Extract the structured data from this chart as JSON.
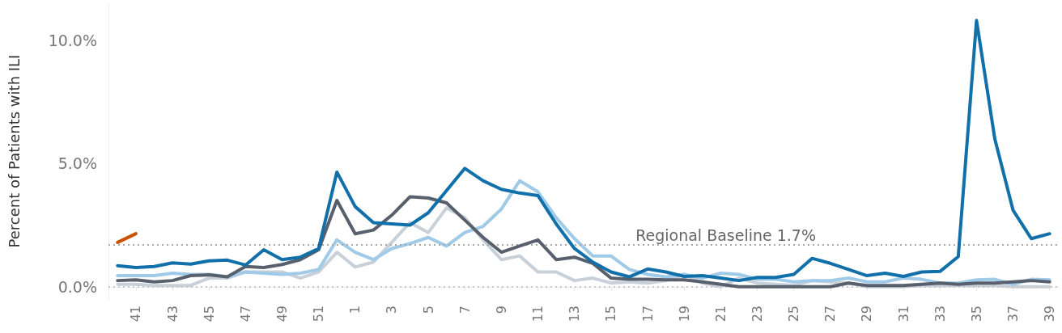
{
  "chart_data": {
    "type": "line",
    "ylabel": "Percent of Patients with ILI",
    "categories": [
      null,
      "41",
      null,
      "43",
      null,
      "45",
      null,
      "47",
      null,
      "49",
      null,
      "51",
      null,
      "1",
      null,
      "3",
      null,
      "5",
      null,
      "7",
      null,
      "9",
      null,
      "11",
      null,
      "13",
      null,
      "15",
      null,
      "17",
      null,
      "19",
      null,
      "21",
      null,
      "23",
      null,
      "25",
      null,
      "27",
      null,
      "29",
      null,
      "31",
      null,
      "33",
      null,
      "35",
      null,
      "37",
      null,
      "39"
    ],
    "series": [
      {
        "color": "#c8d0d9",
        "values": [
          0.1,
          0.1,
          0.05,
          0.05,
          0.05,
          0.35,
          0.35,
          0.6,
          0.6,
          0.6,
          0.35,
          0.6,
          1.4,
          0.8,
          1.0,
          1.8,
          2.6,
          2.2,
          3.2,
          2.8,
          1.9,
          1.1,
          1.25,
          0.6,
          0.6,
          0.25,
          0.35,
          0.15,
          0.2,
          0.15,
          0.25,
          0.5,
          0.15,
          0.0,
          0.35,
          0.15,
          0.1,
          0.05,
          0.25,
          0.2,
          0.15,
          0.0,
          0.0,
          0.0,
          0.05,
          0.05,
          0.05,
          0.05,
          0.05,
          0.0,
          0.0,
          0.0
        ]
      },
      {
        "color": "#a0cbe8",
        "values": [
          0.45,
          0.45,
          0.45,
          0.55,
          0.5,
          0.5,
          0.4,
          0.6,
          0.55,
          0.5,
          0.55,
          0.7,
          1.9,
          1.4,
          1.1,
          1.55,
          1.75,
          2.0,
          1.65,
          2.2,
          2.45,
          3.15,
          4.3,
          3.85,
          2.8,
          1.95,
          1.25,
          1.25,
          0.7,
          0.5,
          0.4,
          0.5,
          0.35,
          0.55,
          0.5,
          0.3,
          0.3,
          0.2,
          0.25,
          0.25,
          0.35,
          0.2,
          0.2,
          0.35,
          0.3,
          0.15,
          0.15,
          0.28,
          0.3,
          0.1,
          0.3,
          0.28
        ]
      },
      {
        "color": "#57606c",
        "values": [
          0.25,
          0.28,
          0.2,
          0.25,
          0.45,
          0.48,
          0.4,
          0.82,
          0.78,
          0.9,
          1.1,
          1.5,
          3.5,
          2.15,
          2.3,
          2.9,
          3.65,
          3.6,
          3.4,
          2.7,
          2.0,
          1.4,
          1.65,
          1.9,
          1.1,
          1.2,
          0.95,
          0.35,
          0.3,
          0.3,
          0.28,
          0.28,
          0.2,
          0.1,
          0.0,
          0.0,
          0.0,
          0.0,
          0.0,
          0.0,
          0.15,
          0.05,
          0.05,
          0.05,
          0.1,
          0.15,
          0.1,
          0.15,
          0.15,
          0.2,
          0.25,
          0.2
        ]
      },
      {
        "color": "#1170aa",
        "values": [
          0.85,
          0.78,
          0.82,
          0.97,
          0.92,
          1.05,
          1.08,
          0.88,
          1.5,
          1.1,
          1.2,
          1.55,
          4.65,
          3.25,
          2.6,
          2.55,
          2.5,
          3.0,
          3.9,
          4.8,
          4.3,
          3.95,
          3.8,
          3.7,
          2.55,
          1.55,
          1.0,
          0.6,
          0.4,
          0.72,
          0.6,
          0.42,
          0.45,
          0.35,
          0.25,
          0.38,
          0.38,
          0.5,
          1.15,
          0.95,
          0.7,
          0.45,
          0.55,
          0.42,
          0.6,
          0.62,
          1.22,
          10.8,
          6.0,
          3.1,
          1.95,
          2.15
        ]
      },
      {
        "color": "#c85200",
        "values": [
          1.8,
          2.15,
          null,
          null,
          null,
          null,
          null,
          null,
          null,
          null,
          null,
          null,
          null,
          null,
          null,
          null,
          null,
          null,
          null,
          null,
          null,
          null,
          null,
          null,
          null,
          null,
          null,
          null,
          null,
          null,
          null,
          null,
          null,
          null,
          null,
          null,
          null,
          null,
          null,
          null,
          null,
          null,
          null,
          null,
          null,
          null,
          null,
          null,
          null,
          null,
          null,
          null
        ]
      }
    ],
    "ylim": [
      -0.5,
      11.5
    ],
    "yticks": [
      {
        "value": 0,
        "label": "0.0%"
      },
      {
        "value": 5,
        "label": "5.0%"
      },
      {
        "value": 10,
        "label": "10.0%"
      }
    ],
    "ref_lines": [
      {
        "axis": "y",
        "value": 1.7,
        "label": "Regional Baseline 1.7%",
        "color": "#a8a8a8",
        "line_style": "dotted"
      },
      {
        "axis": "y",
        "value": 0,
        "color": "#c8c8c8",
        "line_style": "dotted"
      }
    ],
    "grid": false,
    "marker": "none",
    "line_style": "solid"
  }
}
